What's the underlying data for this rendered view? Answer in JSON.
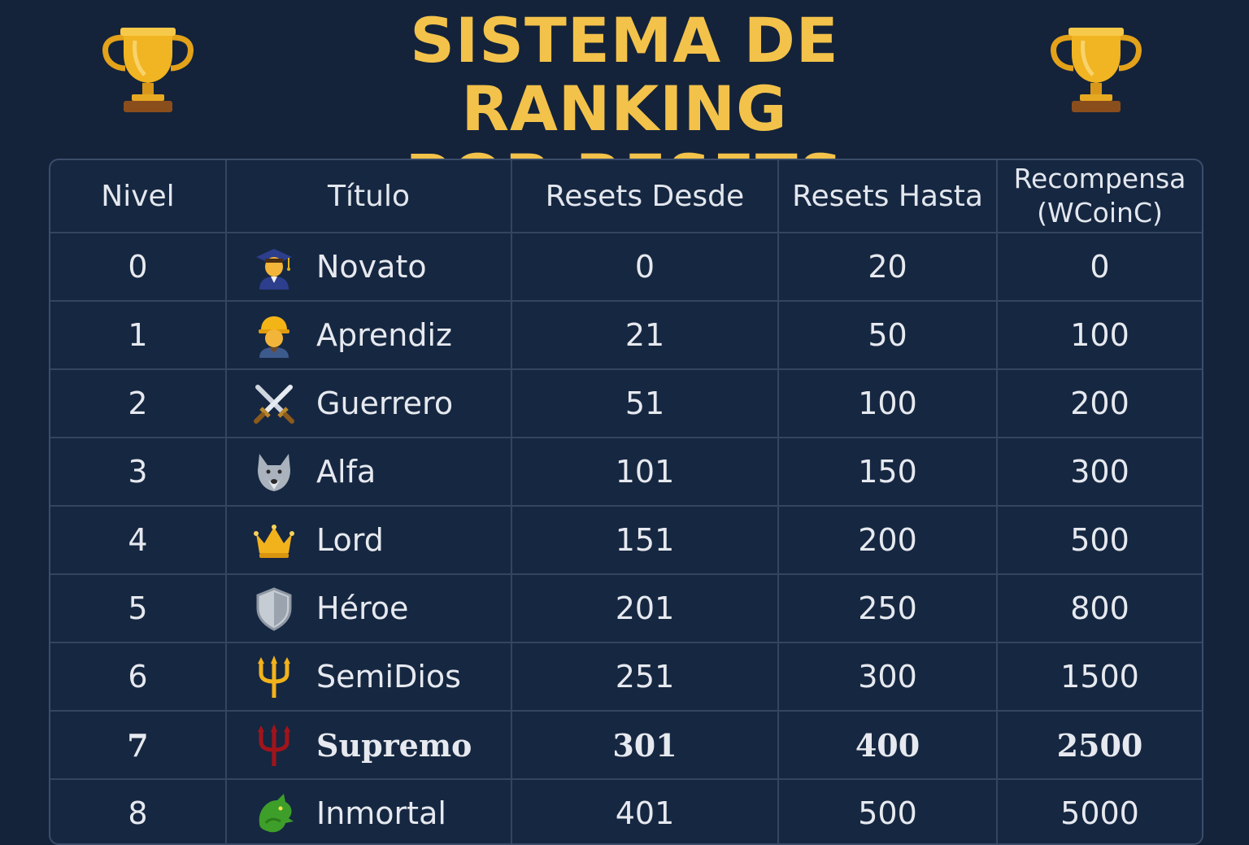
{
  "page": {
    "title_line1": "SISTEMA DE RANKING",
    "title_line2": "POR RESETS",
    "title_color": "#f3c24a",
    "background": "#14233a"
  },
  "table": {
    "headers": {
      "level": "Nivel",
      "title": "Título",
      "from": "Resets Desde",
      "to": "Resets Hasta",
      "reward_line1": "Recompensa",
      "reward_line2": "(WCoinC)"
    },
    "rows": [
      {
        "level": "0",
        "icon": "graduate-icon",
        "title": "Novato",
        "from": "0",
        "to": "20",
        "reward": "0"
      },
      {
        "level": "1",
        "icon": "worker-icon",
        "title": "Aprendiz",
        "from": "21",
        "to": "50",
        "reward": "100"
      },
      {
        "level": "2",
        "icon": "crossed-swords-icon",
        "title": "Guerrero",
        "from": "51",
        "to": "100",
        "reward": "200"
      },
      {
        "level": "3",
        "icon": "wolf-icon",
        "title": "Alfa",
        "from": "101",
        "to": "150",
        "reward": "300"
      },
      {
        "level": "4",
        "icon": "crown-icon",
        "title": "Lord",
        "from": "151",
        "to": "200",
        "reward": "500"
      },
      {
        "level": "5",
        "icon": "shield-icon",
        "title": "Héroe",
        "from": "201",
        "to": "250",
        "reward": "800"
      },
      {
        "level": "6",
        "icon": "gold-trident-icon",
        "title": "SemiDios",
        "from": "251",
        "to": "300",
        "reward": "1500"
      },
      {
        "level": "7",
        "icon": "red-trident-icon",
        "title": "Supremo",
        "from": "301",
        "to": "400",
        "reward": "2500"
      },
      {
        "level": "8",
        "icon": "dragon-icon",
        "title": "Inmortal",
        "from": "401",
        "to": "500",
        "reward": "5000"
      }
    ]
  }
}
